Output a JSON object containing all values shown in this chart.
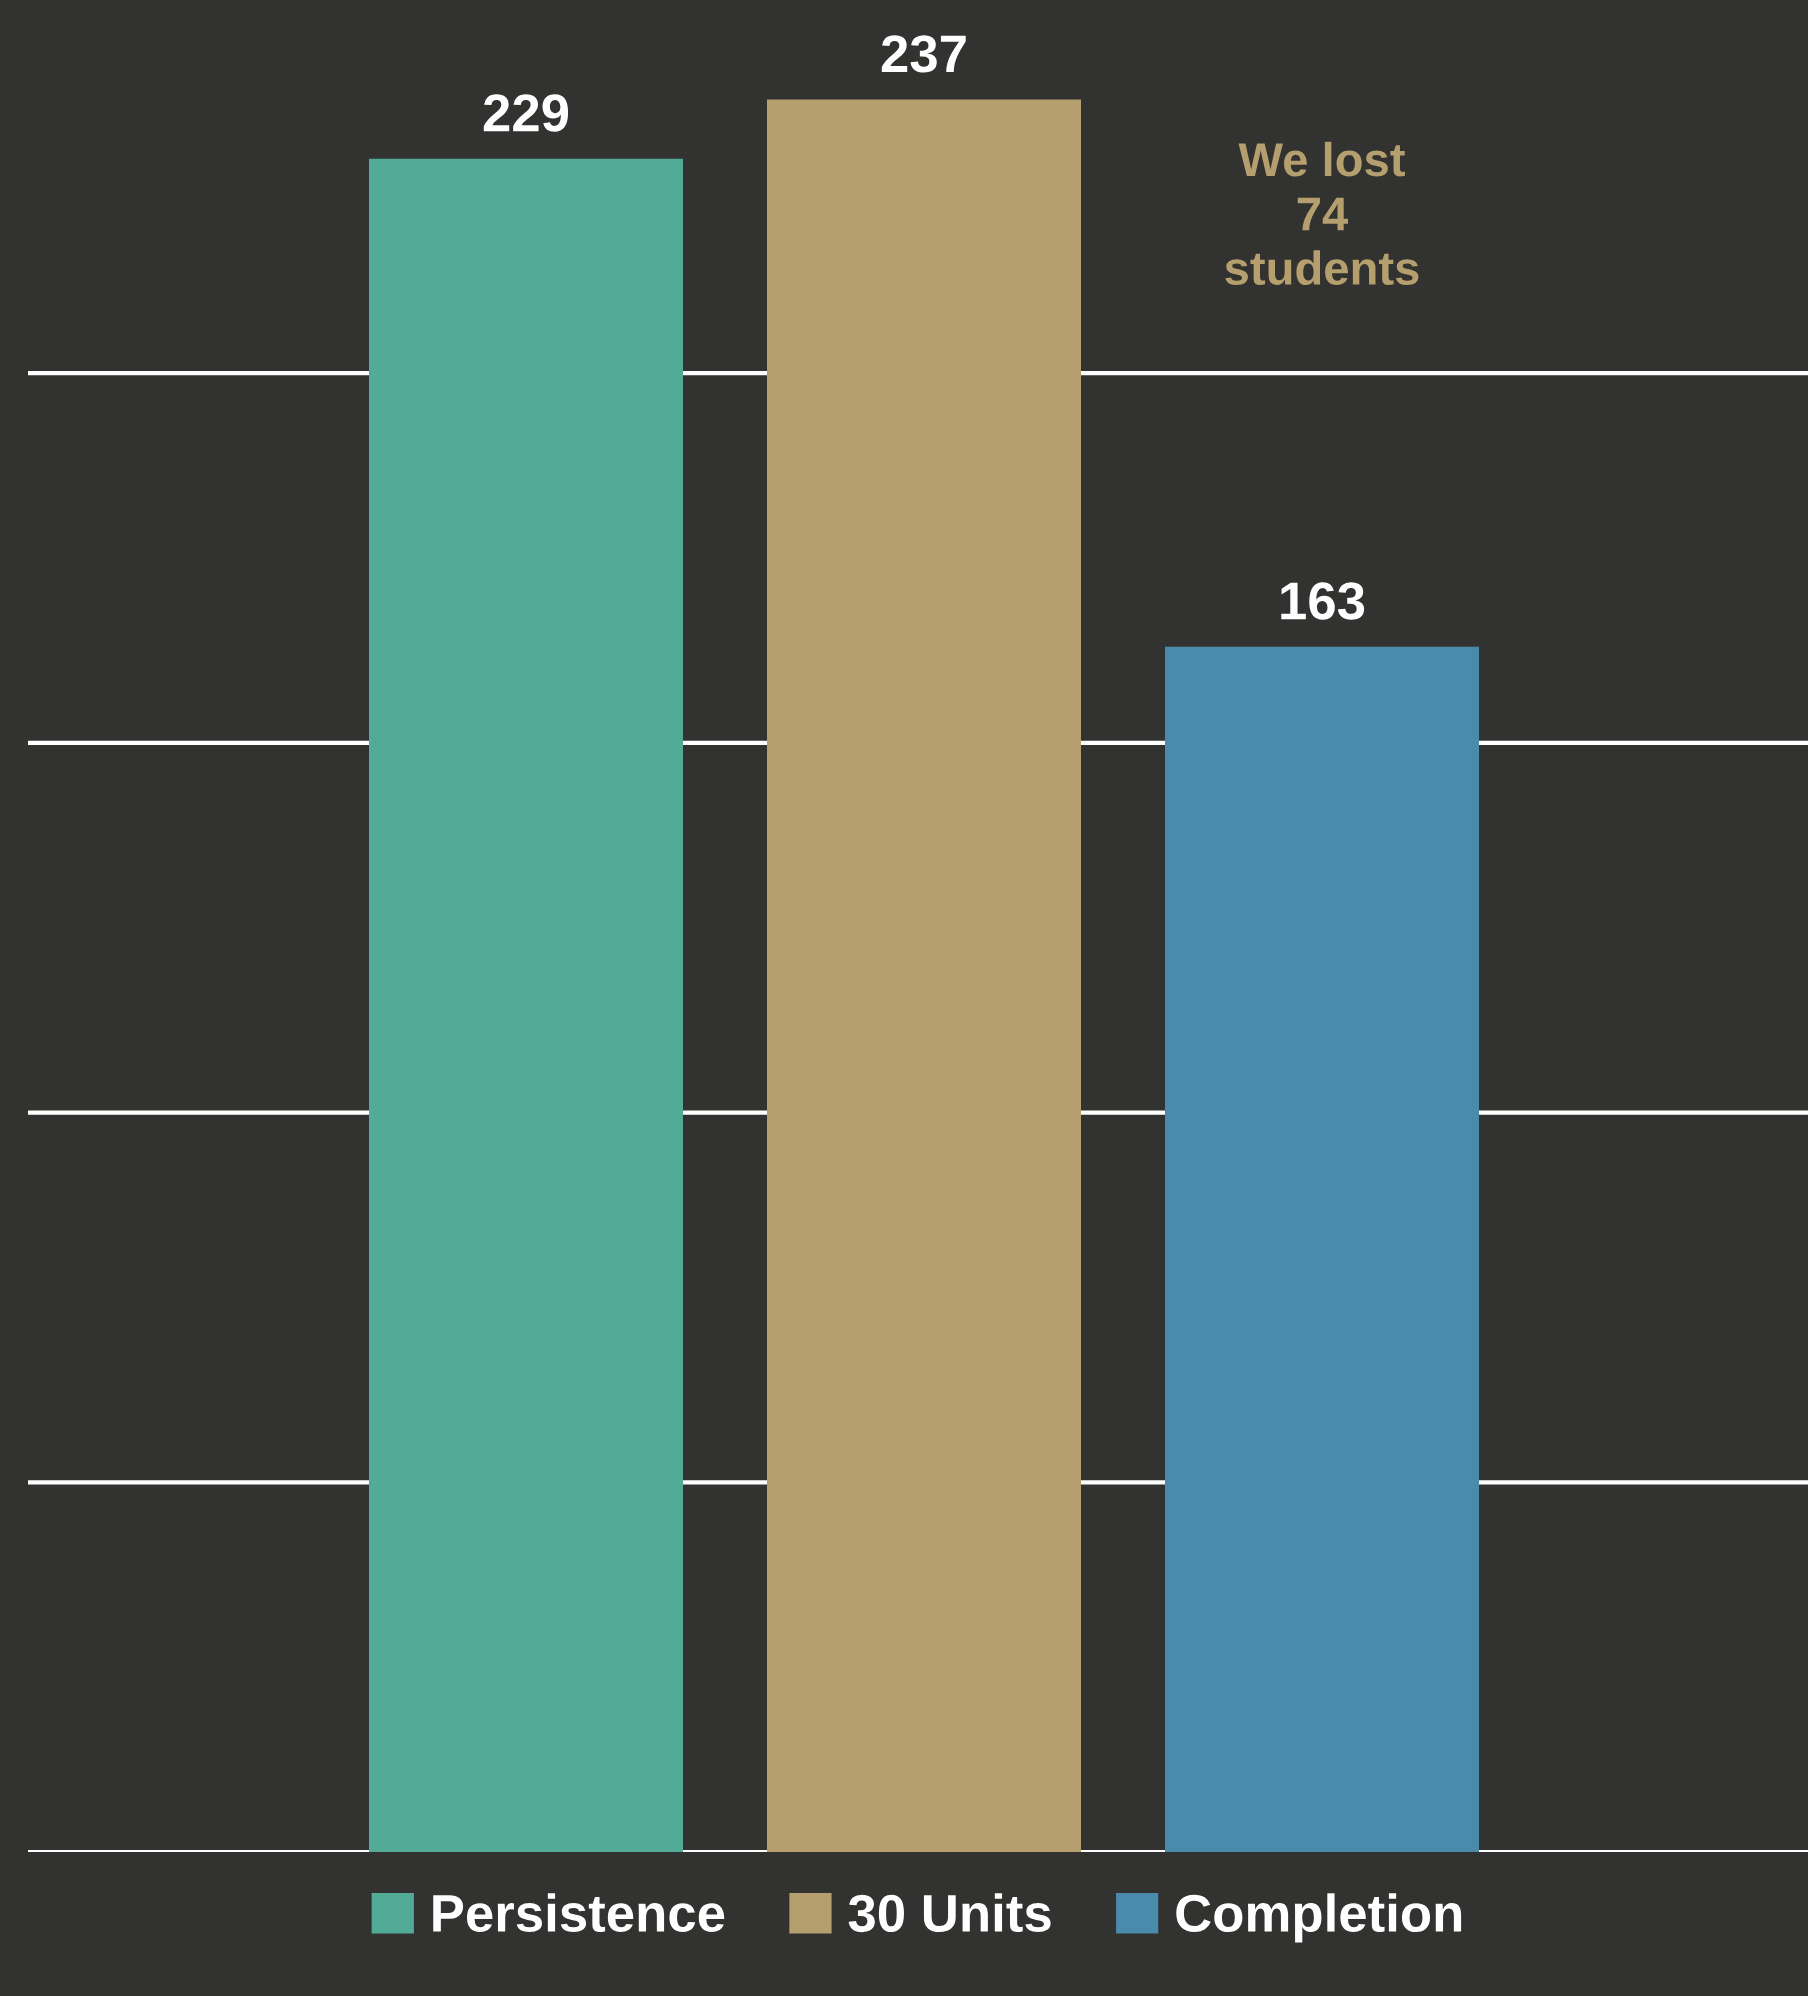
{
  "chart_data": {
    "type": "bar",
    "categories": [
      null
    ],
    "series": [
      {
        "name": "Persistence",
        "color": "#52ab97",
        "values": [
          229
        ]
      },
      {
        "name": "30 Units",
        "color": "#b59f6e",
        "values": [
          237
        ]
      },
      {
        "name": "Completion",
        "color": "#4a8aaa",
        "values": [
          163
        ]
      }
    ],
    "grid": "y",
    "tick_labels": false,
    "data_labels": true,
    "legend": "bottom",
    "annotations": [
      "We lost\n74\nstudents"
    ]
  }
}
